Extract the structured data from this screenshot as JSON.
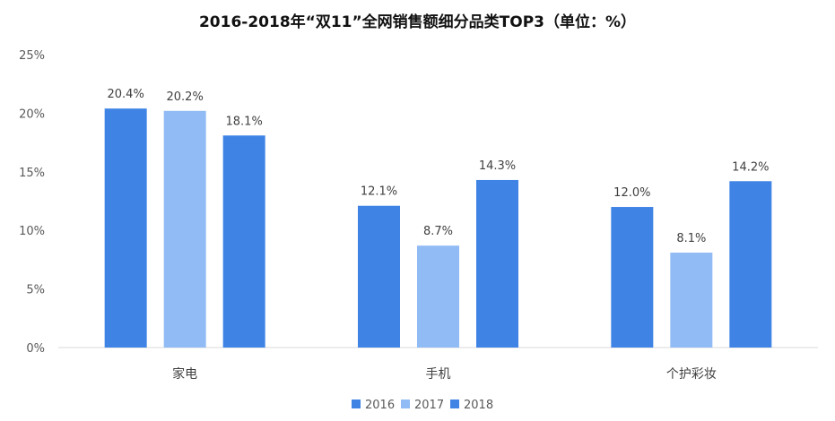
{
  "chart_data": {
    "type": "bar",
    "title": "2016-2018年“双11”全网销售额细分品类TOP3（单位：%）",
    "categories": [
      "家电",
      "手机",
      "个护彩妆"
    ],
    "series": [
      {
        "name": "2016",
        "values": [
          20.4,
          12.1,
          12.0
        ],
        "labels": [
          "20.4%",
          "12.1%",
          "12.0%"
        ]
      },
      {
        "name": "2017",
        "values": [
          20.2,
          8.7,
          8.1
        ],
        "labels": [
          "20.2%",
          "8.7%",
          "8.1%"
        ]
      },
      {
        "name": "2018",
        "values": [
          18.1,
          14.3,
          14.2
        ],
        "labels": [
          "18.1%",
          "14.3%",
          "14.2%"
        ]
      }
    ],
    "colors": [
      "#3f84e5",
      "#91bbf5",
      "#3f84e5"
    ],
    "yticks": [
      "0%",
      "5%",
      "10%",
      "15%",
      "20%",
      "25%"
    ],
    "ylim": [
      0,
      25
    ],
    "grid": false,
    "legend": "bottom"
  }
}
